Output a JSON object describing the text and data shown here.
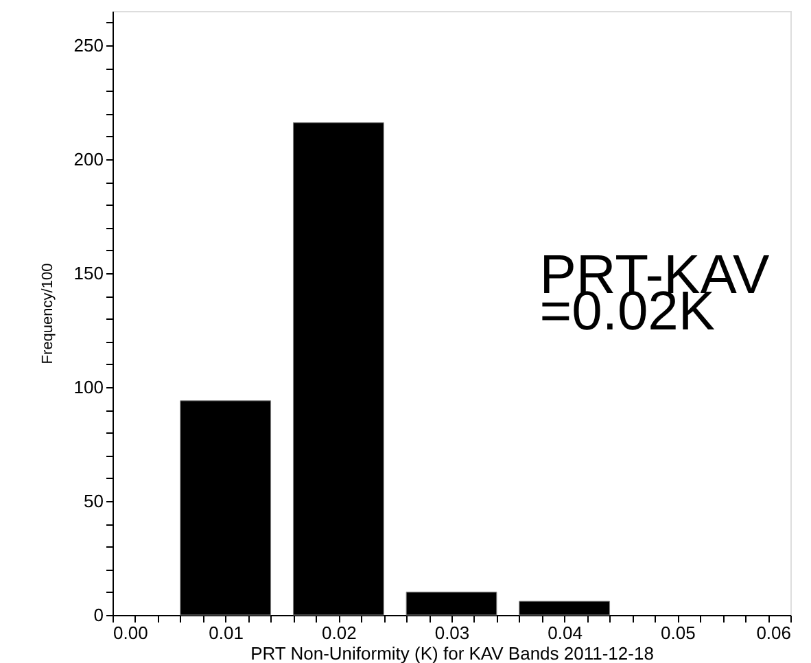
{
  "chart_data": {
    "type": "bar",
    "xlabel": "PRT Non-Uniformity (K) for KAV Bands 2011-12-18",
    "ylabel": "Frequency/100",
    "x": [
      0.01,
      0.02,
      0.03,
      0.04
    ],
    "values": [
      94,
      216,
      10,
      6
    ],
    "color": "#000000",
    "xlim": [
      0,
      0.06
    ],
    "ylim": [
      0,
      265
    ],
    "xticks": [
      {
        "value": 0,
        "label": "0.00"
      },
      {
        "value": 0.01,
        "label": "0.01"
      },
      {
        "value": 0.02,
        "label": "0.02"
      },
      {
        "value": 0.03,
        "label": "0.03"
      },
      {
        "value": 0.04,
        "label": "0.04"
      },
      {
        "value": 0.05,
        "label": "0.05"
      },
      {
        "value": 0.06,
        "label": "0.06"
      },
      {
        "value": 0.002,
        "label": null
      },
      {
        "value": 0.004,
        "label": null
      },
      {
        "value": 0.006,
        "label": null
      },
      {
        "value": 0.008,
        "label": null
      },
      {
        "value": 0.012,
        "label": null
      },
      {
        "value": 0.014,
        "label": null
      },
      {
        "value": 0.016,
        "label": null
      },
      {
        "value": 0.018,
        "label": null
      },
      {
        "value": 0.022,
        "label": null
      },
      {
        "value": 0.024,
        "label": null
      },
      {
        "value": 0.026,
        "label": null
      },
      {
        "value": 0.028,
        "label": null
      },
      {
        "value": 0.032,
        "label": null
      },
      {
        "value": 0.034,
        "label": null
      },
      {
        "value": 0.036,
        "label": null
      },
      {
        "value": 0.038,
        "label": null
      },
      {
        "value": 0.042,
        "label": null
      },
      {
        "value": 0.044,
        "label": null
      },
      {
        "value": 0.046,
        "label": null
      },
      {
        "value": 0.048,
        "label": null
      },
      {
        "value": 0.052,
        "label": null
      },
      {
        "value": 0.054,
        "label": null
      },
      {
        "value": 0.056,
        "label": null
      },
      {
        "value": 0.058,
        "label": null
      }
    ],
    "yticks": [
      0,
      50,
      100,
      150,
      200,
      250,
      {
        "value": 10,
        "label": null
      },
      {
        "value": 20,
        "label": null
      },
      {
        "value": 30,
        "label": null
      },
      {
        "value": 40,
        "label": null
      },
      {
        "value": 60,
        "label": null
      },
      {
        "value": 70,
        "label": null
      },
      {
        "value": 80,
        "label": null
      },
      {
        "value": 90,
        "label": null
      },
      {
        "value": 110,
        "label": null
      },
      {
        "value": 120,
        "label": null
      },
      {
        "value": 130,
        "label": null
      },
      {
        "value": 140,
        "label": null
      },
      {
        "value": 160,
        "label": null
      },
      {
        "value": 170,
        "label": null
      },
      {
        "value": 180,
        "label": null
      },
      {
        "value": 190,
        "label": null
      },
      {
        "value": 210,
        "label": null
      },
      {
        "value": 220,
        "label": null
      },
      {
        "value": 230,
        "label": null
      },
      {
        "value": 240,
        "label": null
      },
      {
        "value": 260,
        "label": null
      }
    ],
    "annotations": [
      "PRT-KAV",
      "=0.02K"
    ],
    "grid": false
  }
}
